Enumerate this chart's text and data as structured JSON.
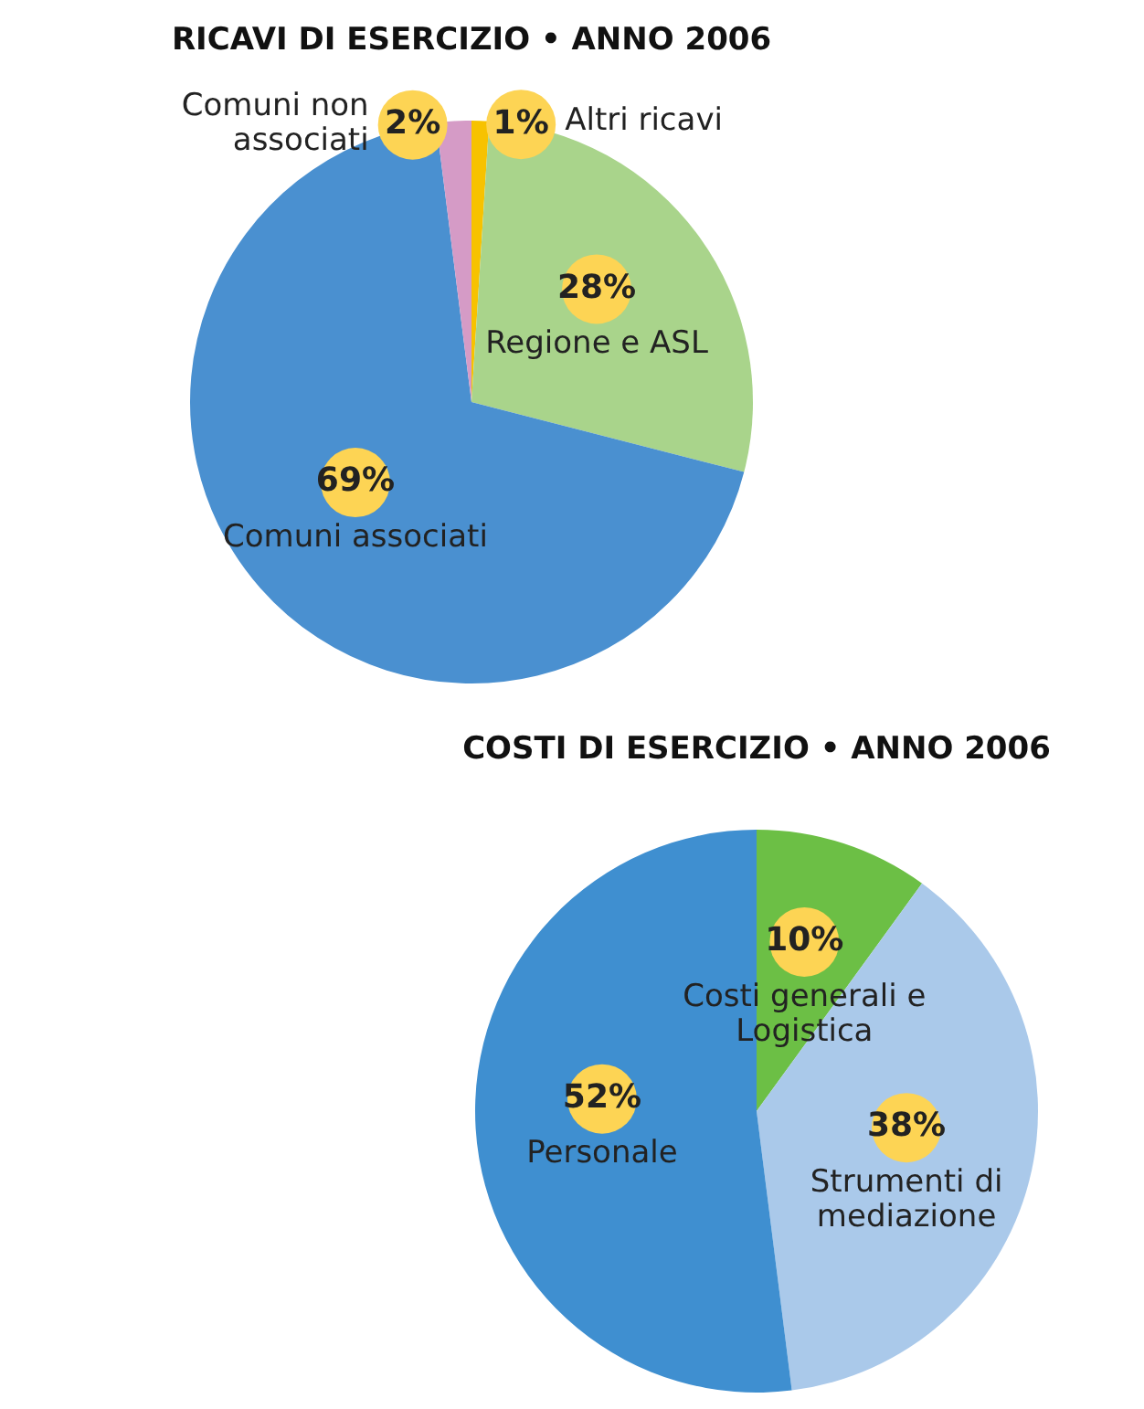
{
  "chart_data": [
    {
      "type": "pie",
      "title": "RICAVI DI ESERCIZIO • ANNO 2006",
      "categories": [
        "Altri ricavi",
        "Regione e ASL",
        "Comuni associati",
        "Comuni non associati"
      ],
      "values": [
        1,
        28,
        69,
        2
      ],
      "value_labels": [
        "1%",
        "28%",
        "69%",
        "2%"
      ],
      "colors": [
        "#f7c200",
        "#a9d48b",
        "#4a90d0",
        "#d59bc6"
      ]
    },
    {
      "type": "pie",
      "title": "COSTI DI ESERCIZIO • ANNO 2006",
      "categories": [
        "Costi generali e Logistica",
        "Strumenti di mediazione",
        "Personale"
      ],
      "values": [
        10,
        38,
        52
      ],
      "value_labels": [
        "10%",
        "38%",
        "52%"
      ],
      "colors": [
        "#6cbf45",
        "#aac9ea",
        "#3f8fd0"
      ]
    }
  ]
}
